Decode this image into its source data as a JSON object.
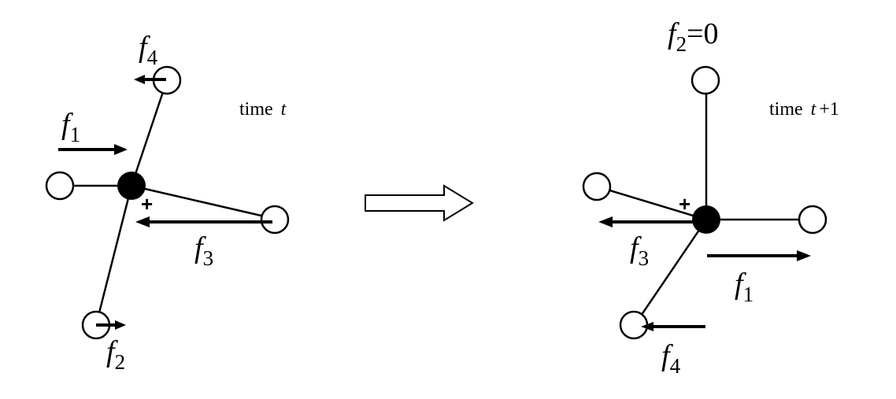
{
  "left_panel": {
    "time_label": "time",
    "time_var": "t",
    "f1": {
      "base": "f",
      "sub": "1"
    },
    "f2": {
      "base": "f",
      "sub": "2"
    },
    "f3": {
      "base": "f",
      "sub": "3"
    },
    "f4": {
      "base": "f",
      "sub": "4"
    },
    "plus": "+"
  },
  "right_panel": {
    "time_label": "time",
    "time_var": "t",
    "time_suffix": "+1",
    "f1": {
      "base": "f",
      "sub": "1"
    },
    "f2": {
      "base": "f",
      "sub": "2",
      "value": "=0"
    },
    "f3": {
      "base": "f",
      "sub": "3"
    },
    "f4": {
      "base": "f",
      "sub": "4"
    },
    "plus": "+"
  }
}
